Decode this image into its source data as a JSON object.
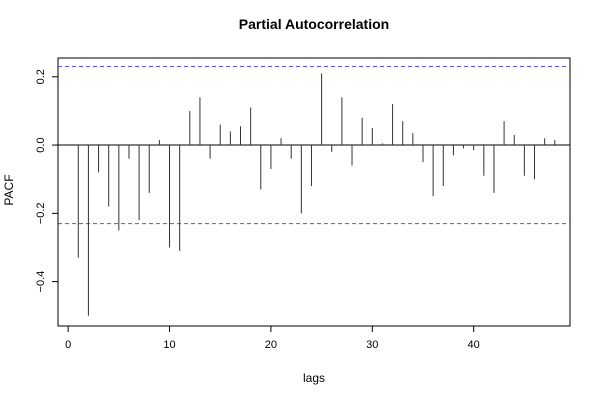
{
  "chart_data": {
    "type": "bar",
    "title": "Partial Autocorrelation",
    "xlabel": "lags",
    "ylabel": "PACF",
    "xlim": [
      -1,
      49.5
    ],
    "ylim": [
      -0.53,
      0.255
    ],
    "x_ticks": [
      {
        "value": 0,
        "label": "0"
      },
      {
        "value": 10,
        "label": "10"
      },
      {
        "value": 20,
        "label": "20"
      },
      {
        "value": 30,
        "label": "30"
      },
      {
        "value": 40,
        "label": "40"
      }
    ],
    "y_ticks": [
      {
        "value": -0.4,
        "label": "−0.4"
      },
      {
        "value": -0.2,
        "label": "−0.2"
      },
      {
        "value": 0.0,
        "label": "0.0"
      },
      {
        "value": 0.2,
        "label": "0.2"
      }
    ],
    "confidence_bounds": [
      0.23,
      -0.23
    ],
    "bound_color": "#5555dd",
    "line_color": "#333333",
    "x": [
      1,
      2,
      3,
      4,
      5,
      6,
      7,
      8,
      9,
      10,
      11,
      12,
      13,
      14,
      15,
      16,
      17,
      18,
      19,
      20,
      21,
      22,
      23,
      24,
      25,
      26,
      27,
      28,
      29,
      30,
      31,
      32,
      33,
      34,
      35,
      36,
      37,
      38,
      39,
      40,
      41,
      42,
      43,
      44,
      45,
      46,
      47,
      48
    ],
    "values": [
      -0.33,
      -0.5,
      -0.08,
      -0.18,
      -0.25,
      -0.04,
      -0.22,
      -0.14,
      0.015,
      -0.3,
      -0.31,
      0.1,
      0.14,
      -0.04,
      0.06,
      0.04,
      0.055,
      0.11,
      -0.13,
      -0.07,
      0.02,
      -0.04,
      -0.2,
      -0.12,
      0.21,
      -0.02,
      0.14,
      -0.06,
      0.08,
      0.05,
      0.005,
      0.12,
      0.07,
      0.035,
      -0.05,
      -0.15,
      -0.12,
      -0.03,
      -0.01,
      -0.015,
      -0.09,
      -0.14,
      0.07,
      0.03,
      -0.09,
      -0.1,
      0.02,
      0.015
    ]
  }
}
